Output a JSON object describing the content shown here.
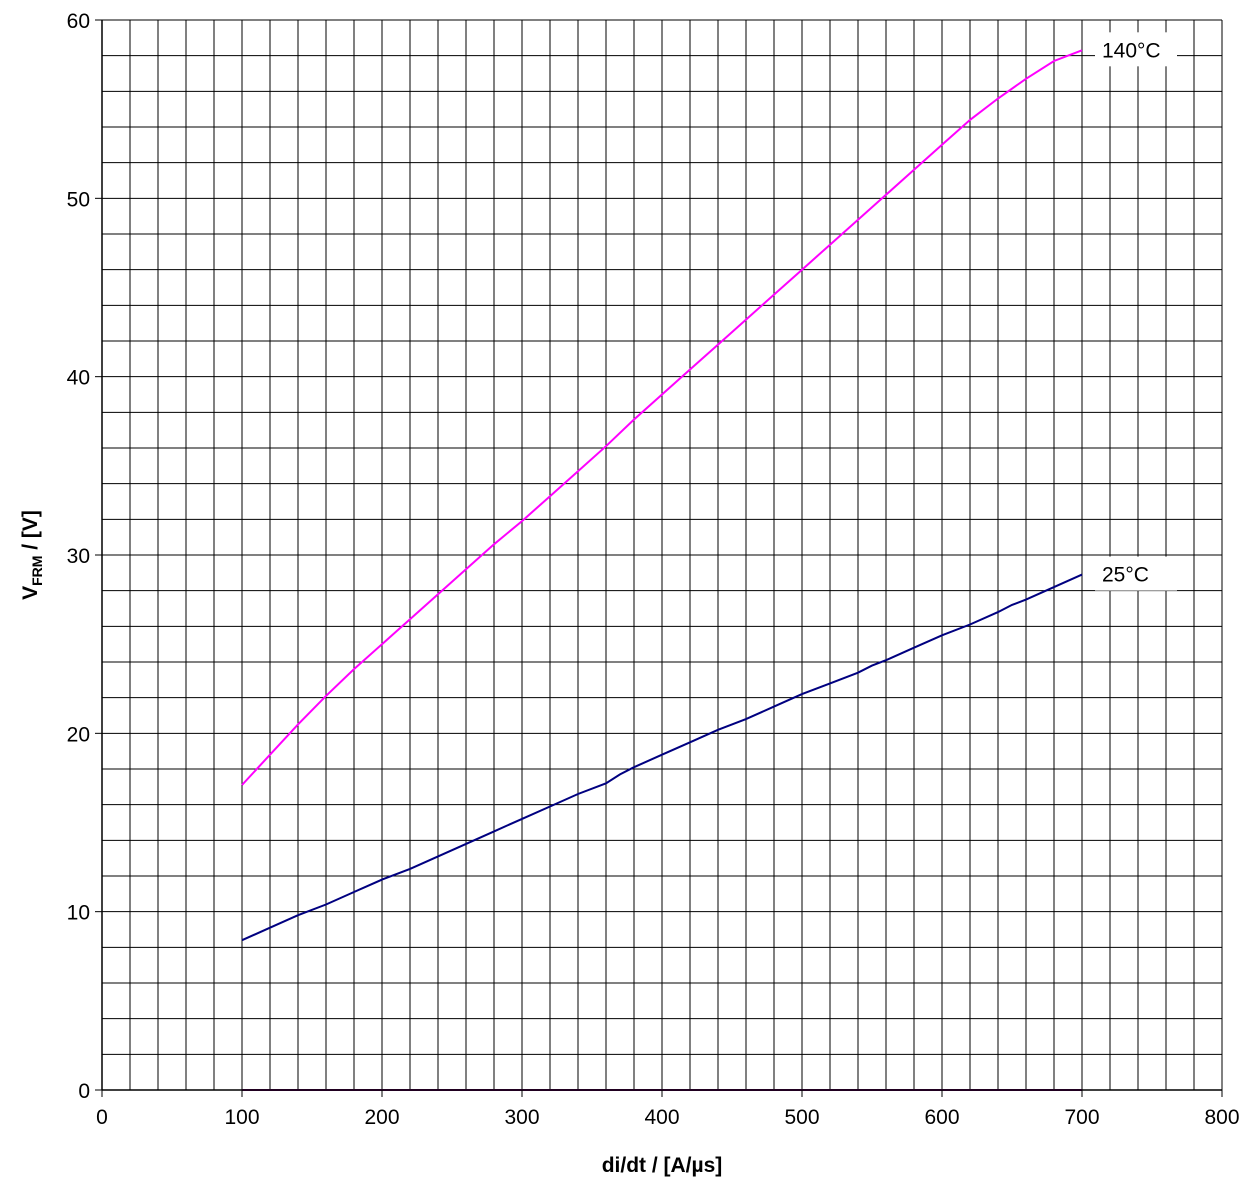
{
  "chart_data": {
    "type": "line",
    "xlabel": "di/dt / [A/µs]",
    "ylabel": {
      "main": "V",
      "subscript": "FRM",
      "rest": " / [V]"
    },
    "xlim": [
      0,
      800
    ],
    "ylim": [
      0,
      60
    ],
    "x_ticks": [
      0,
      100,
      200,
      300,
      400,
      500,
      600,
      700,
      800
    ],
    "y_ticks": [
      0,
      10,
      20,
      30,
      40,
      50,
      60
    ],
    "x_minor_step": 20,
    "y_minor_step": 2,
    "grid": true,
    "series": [
      {
        "name": "140°C",
        "color": "#ff00ff",
        "x": [
          100,
          120,
          140,
          160,
          180,
          200,
          220,
          240,
          260,
          280,
          300,
          320,
          340,
          360,
          380,
          400,
          420,
          440,
          460,
          480,
          500,
          520,
          540,
          560,
          580,
          600,
          620,
          640,
          660,
          680,
          700
        ],
        "y": [
          17.1,
          18.8,
          20.5,
          22.1,
          23.6,
          25.0,
          26.4,
          27.8,
          29.2,
          30.6,
          31.9,
          33.3,
          34.7,
          36.1,
          37.6,
          39.0,
          40.4,
          41.8,
          43.2,
          44.6,
          46.0,
          47.4,
          48.8,
          50.2,
          51.6,
          53.0,
          54.4,
          55.6,
          56.7,
          57.7,
          58.3
        ]
      },
      {
        "name": "25°C",
        "color": "#000080",
        "x": [
          100,
          120,
          140,
          160,
          180,
          200,
          220,
          240,
          260,
          280,
          300,
          320,
          340,
          360,
          370,
          380,
          400,
          420,
          440,
          460,
          480,
          500,
          520,
          540,
          550,
          560,
          580,
          600,
          620,
          640,
          650,
          660,
          680,
          700
        ],
        "y": [
          8.4,
          9.1,
          9.8,
          10.4,
          11.1,
          11.8,
          12.4,
          13.1,
          13.8,
          14.5,
          15.2,
          15.9,
          16.6,
          17.2,
          17.7,
          18.1,
          18.8,
          19.5,
          20.2,
          20.8,
          21.5,
          22.2,
          22.8,
          23.4,
          23.8,
          24.1,
          24.8,
          25.5,
          26.1,
          26.8,
          27.2,
          27.5,
          28.2,
          28.9
        ]
      },
      {
        "name": "",
        "color": "#800080",
        "x": [
          100,
          700
        ],
        "y": [
          0,
          0
        ]
      }
    ]
  }
}
